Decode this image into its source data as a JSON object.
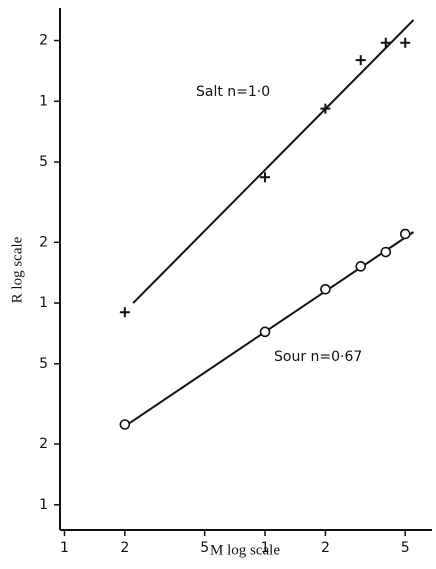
{
  "chart_data": {
    "type": "scatter",
    "log_x": true,
    "log_y": true,
    "xlabel": "M log scale",
    "ylabel": "R log scale",
    "xlim": [
      0.0095,
      0.68
    ],
    "ylim": [
      0.75,
      290
    ],
    "xticks": [
      {
        "value": 0.01,
        "label": "1"
      },
      {
        "value": 0.02,
        "label": "2"
      },
      {
        "value": 0.05,
        "label": "5"
      },
      {
        "value": 0.1,
        "label": "1"
      },
      {
        "value": 0.2,
        "label": "2"
      },
      {
        "value": 0.5,
        "label": "5"
      }
    ],
    "yticks": [
      1,
      2,
      5,
      {
        "value": 10,
        "label": "1"
      },
      {
        "value": 20,
        "label": "2"
      },
      {
        "value": 50,
        "label": "5"
      },
      {
        "value": 100,
        "label": "1"
      },
      {
        "value": 200,
        "label": "2"
      }
    ],
    "series": [
      {
        "name": "Salt",
        "marker": "plus",
        "color": "#111",
        "x": [
          0.02,
          0.1,
          0.2,
          0.3,
          0.4,
          0.5
        ],
        "values": [
          9,
          42,
          92,
          160,
          195,
          195
        ],
        "fit_x": [
          0.022,
          0.55
        ],
        "fit_values": [
          10,
          253
        ],
        "annotation": "Salt n=1·0"
      },
      {
        "name": "Sour",
        "marker": "circle",
        "color": "#111",
        "x": [
          0.02,
          0.1,
          0.2,
          0.3,
          0.4,
          0.5
        ],
        "values": [
          2.5,
          7.2,
          11.7,
          15.2,
          17.9,
          22
        ],
        "fit_x": [
          0.02,
          0.55
        ],
        "fit_values": [
          2.45,
          22.5
        ],
        "annotation": "Sour n=0·67"
      }
    ]
  }
}
